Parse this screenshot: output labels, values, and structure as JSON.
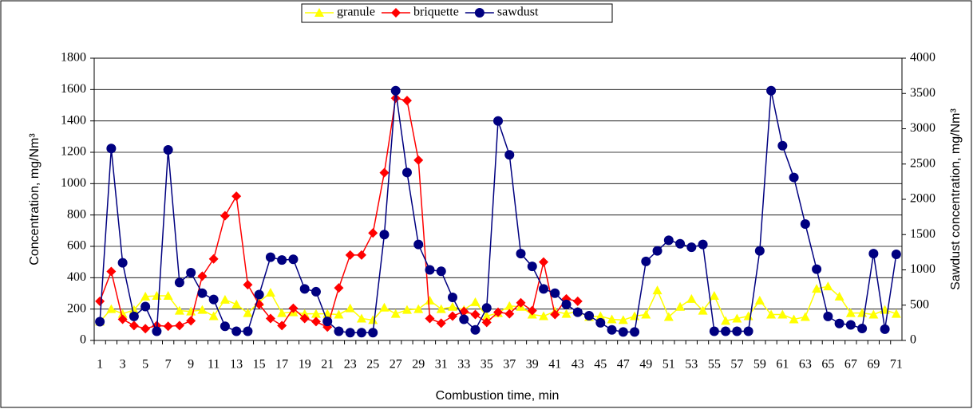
{
  "chart_data": {
    "type": "line",
    "x_label": "Combustion time, min",
    "y_label": "Concentration, mg/Nm³",
    "y2_label": "Sawdust concentration, mg/Nm³",
    "categories": [
      "1",
      null,
      "3",
      null,
      "5",
      null,
      "7",
      null,
      "9",
      null,
      "11",
      null,
      "13",
      null,
      "15",
      null,
      "17",
      null,
      "19",
      null,
      "21",
      null,
      "23",
      null,
      "25",
      null,
      "27",
      null,
      "29",
      null,
      "31",
      null,
      "33",
      null,
      "35",
      null,
      "37",
      null,
      "39",
      null,
      "41",
      null,
      "43",
      null,
      "45",
      null,
      "47",
      null,
      "49",
      null,
      "51",
      null,
      "53",
      null,
      "55",
      null,
      "57",
      null,
      "59",
      null,
      "61",
      null,
      "63",
      null,
      "65",
      null,
      "67",
      null,
      "69",
      null,
      "71"
    ],
    "series": [
      {
        "name": "granule",
        "color": "#ffff00",
        "marker": "triangle",
        "axis": "y",
        "values": [
          120,
          200,
          170,
          195,
          280,
          285,
          285,
          190,
          185,
          195,
          155,
          260,
          230,
          175,
          245,
          305,
          175,
          180,
          170,
          170,
          170,
          165,
          205,
          140,
          130,
          210,
          170,
          195,
          200,
          255,
          200,
          215,
          195,
          245,
          155,
          175,
          220,
          215,
          165,
          155,
          185,
          170,
          185,
          150,
          155,
          135,
          130,
          155,
          165,
          320,
          150,
          215,
          265,
          190,
          285,
          125,
          140,
          155,
          255,
          165,
          165,
          135,
          150,
          330,
          345,
          280,
          175,
          175,
          165,
          195,
          170
        ]
      },
      {
        "name": "briquette",
        "color": "#ff0000",
        "marker": "diamond",
        "axis": "y",
        "values": [
          250,
          440,
          135,
          95,
          75,
          95,
          90,
          95,
          125,
          410,
          520,
          795,
          920,
          355,
          230,
          140,
          95,
          205,
          140,
          120,
          85,
          335,
          545,
          545,
          685,
          1070,
          1545,
          1530,
          1150,
          140,
          110,
          155,
          185,
          165,
          115,
          180,
          170,
          240,
          190,
          500,
          165,
          265,
          250,
          null,
          null,
          null,
          null,
          null,
          null,
          null,
          null,
          null,
          null,
          null,
          null,
          null,
          null,
          null,
          null,
          null,
          null,
          null,
          null,
          null,
          null,
          null,
          null,
          null,
          null,
          null,
          null
        ]
      },
      {
        "name": "sawdust",
        "color": "#000080",
        "marker": "circle",
        "axis": "y2",
        "values": [
          265,
          2720,
          1100,
          340,
          480,
          130,
          2700,
          820,
          960,
          670,
          580,
          200,
          130,
          130,
          650,
          1180,
          1140,
          1150,
          730,
          690,
          270,
          130,
          110,
          110,
          110,
          1500,
          3540,
          2380,
          1360,
          1000,
          980,
          610,
          300,
          150,
          460,
          3110,
          2630,
          1230,
          1050,
          730,
          670,
          510,
          400,
          350,
          250,
          150,
          120,
          120,
          1120,
          1270,
          1420,
          1370,
          1320,
          1360,
          130,
          130,
          130,
          130,
          1270,
          3540,
          2760,
          2310,
          1650,
          1010,
          340,
          240,
          220,
          170,
          1230,
          160,
          1220
        ]
      }
    ],
    "ylim": [
      0,
      1800
    ],
    "yticks": [
      0,
      200,
      400,
      600,
      800,
      1000,
      1200,
      1400,
      1600,
      1800
    ],
    "y2lim": [
      0,
      4000
    ],
    "y2ticks": [
      0,
      500,
      1000,
      1500,
      2000,
      2500,
      3000,
      3500,
      4000
    ],
    "grid": true,
    "legend": "top"
  }
}
